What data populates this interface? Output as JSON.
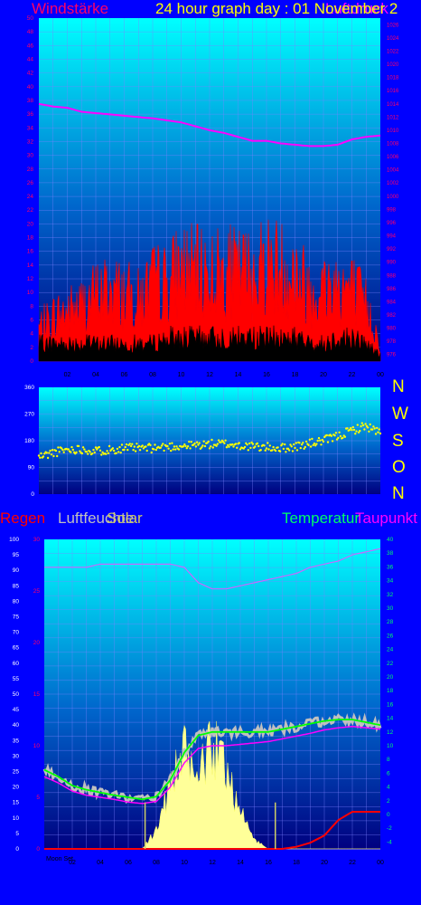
{
  "header": {
    "left_label": "Windstärke",
    "title": "24 hour graph day : 01 November 2",
    "pressure_label": "Luftdruck"
  },
  "colors": {
    "background": "#0000ff",
    "plot_top": "#00ffff",
    "plot_bottom": "#000080",
    "gust": "#ff0000",
    "wind": "#000000",
    "pressure": "#ff00ff",
    "direction": "#ffff00",
    "temperature": "#00ff00",
    "dewpoint": "#ff00ff",
    "humidity": "#c0c0c0",
    "rain": "#ff0000",
    "solar": "#ffff99",
    "axis_label_pink": "#ff0066"
  },
  "compass": [
    "N",
    "W",
    "S",
    "O",
    "N"
  ],
  "bottom_labels": {
    "rain": "Regen",
    "humidity": "Luftfeuchte",
    "solar": "Solar",
    "temperature": "Temperatur",
    "dewpoint": "Taupunkt",
    "moon": "Moon Set"
  },
  "chart_data": [
    {
      "type": "area",
      "name": "wind",
      "x_ticks": [
        "02",
        "04",
        "06",
        "08",
        "10",
        "12",
        "14",
        "16",
        "18",
        "20",
        "22",
        "00"
      ],
      "y_left_ticks": [
        0,
        2,
        4,
        6,
        8,
        10,
        12,
        14,
        16,
        18,
        20,
        22,
        24,
        26,
        28,
        30,
        32,
        34,
        36,
        38,
        40,
        42,
        44,
        46,
        48,
        50
      ],
      "y_right_ticks": [
        976,
        978,
        980,
        982,
        984,
        986,
        988,
        990,
        992,
        994,
        996,
        998,
        1000,
        1002,
        1004,
        1006,
        1008,
        1010,
        1012,
        1014,
        1016,
        1018,
        1020,
        1022,
        1024,
        1026
      ],
      "ylim_left": [
        0,
        50
      ],
      "ylim_right": [
        975,
        1027
      ],
      "x_hours": [
        0,
        1,
        2,
        3,
        4,
        5,
        6,
        7,
        8,
        9,
        10,
        11,
        12,
        13,
        14,
        15,
        16,
        17,
        18,
        19,
        20,
        21,
        22,
        23,
        24
      ],
      "series": [
        {
          "name": "gust",
          "values": [
            6,
            8,
            9,
            10,
            12,
            13,
            12,
            11,
            14,
            14,
            17,
            16,
            16,
            16,
            16,
            16,
            18,
            17,
            16,
            13,
            13,
            14,
            13,
            10,
            3
          ]
        },
        {
          "name": "wind",
          "values": [
            3,
            3,
            3,
            3,
            3,
            3,
            3,
            3,
            3,
            4,
            4,
            4,
            4,
            4,
            4,
            4,
            4,
            4,
            4,
            3,
            3,
            4,
            4,
            3,
            1
          ]
        },
        {
          "name": "pressure",
          "values": [
            1014,
            1013.6,
            1013.4,
            1012.8,
            1012.6,
            1012.4,
            1012.2,
            1012,
            1011.8,
            1011.5,
            1011.2,
            1010.6,
            1010,
            1009.6,
            1009,
            1008.4,
            1008.4,
            1008,
            1007.8,
            1007.6,
            1007.6,
            1007.8,
            1008.6,
            1009,
            1009.2
          ]
        }
      ]
    },
    {
      "type": "scatter",
      "name": "wind direction",
      "y_ticks": [
        0,
        90,
        180,
        270,
        360
      ],
      "ylim": [
        0,
        360
      ],
      "x_hours": [
        0,
        1,
        2,
        3,
        4,
        5,
        6,
        7,
        8,
        9,
        10,
        11,
        12,
        13,
        14,
        15,
        16,
        17,
        18,
        19,
        20,
        21,
        22,
        23,
        24
      ],
      "values": [
        125,
        140,
        150,
        152,
        145,
        150,
        155,
        155,
        155,
        160,
        162,
        165,
        168,
        170,
        165,
        160,
        158,
        155,
        160,
        170,
        180,
        195,
        215,
        230,
        205
      ]
    },
    {
      "type": "line",
      "name": "weather",
      "x_ticks": [
        "02",
        "04",
        "06",
        "08",
        "10",
        "12",
        "14",
        "16",
        "18",
        "20",
        "22",
        "00"
      ],
      "y_humidity_ticks": [
        0,
        5,
        10,
        15,
        20,
        25,
        30,
        35,
        40,
        45,
        50,
        55,
        60,
        65,
        70,
        75,
        80,
        85,
        90,
        95,
        100
      ],
      "y_rain_ticks": [
        0,
        5,
        10,
        15,
        20,
        25,
        30
      ],
      "y_temp_ticks": [
        -4,
        -2,
        0,
        2,
        4,
        6,
        8,
        10,
        12,
        14,
        16,
        18,
        20,
        22,
        24,
        26,
        28,
        30,
        32,
        34,
        36,
        38,
        40
      ],
      "ylim_temp": [
        -5,
        40
      ],
      "x_hours": [
        0,
        1,
        2,
        3,
        4,
        5,
        6,
        7,
        8,
        9,
        10,
        11,
        12,
        13,
        14,
        15,
        16,
        17,
        18,
        19,
        20,
        21,
        22,
        23,
        24
      ],
      "series": [
        {
          "name": "Temperatur",
          "values": [
            6.5,
            5.5,
            4.2,
            3.6,
            3.2,
            2.8,
            2.5,
            2.2,
            2.6,
            5,
            9,
            11.5,
            12,
            12,
            12,
            12,
            12,
            12.4,
            12.8,
            13.2,
            13.6,
            13.8,
            13.8,
            13.4,
            13
          ]
        },
        {
          "name": "Taupunkt",
          "values": [
            5.5,
            4.6,
            3.4,
            2.8,
            2.5,
            2.2,
            1.8,
            1.6,
            1.9,
            4,
            7.5,
            9.6,
            10,
            10,
            10.2,
            10.4,
            10.6,
            11,
            11.4,
            11.8,
            12.3,
            12.6,
            12.8,
            12.6,
            12.4
          ]
        },
        {
          "name": "Luftfeuchte",
          "values": [
            91,
            91,
            91,
            91,
            92,
            92,
            92,
            92,
            92,
            92,
            91,
            86,
            84,
            84,
            85,
            86,
            87,
            88,
            89,
            91,
            92,
            93,
            95,
            96,
            97
          ]
        },
        {
          "name": "Regen",
          "values": [
            0,
            0,
            0,
            0,
            0,
            0,
            0,
            0,
            0,
            0,
            0,
            0,
            0,
            0,
            0,
            0,
            0,
            0,
            0.2,
            0.6,
            1.3,
            2.8,
            3.6,
            3.6,
            3.6
          ]
        },
        {
          "name": "Solar",
          "values": [
            0,
            0,
            0,
            0,
            0,
            0,
            0,
            0,
            2,
            7,
            10,
            8,
            11,
            9,
            4,
            1,
            0,
            0,
            0,
            0,
            0,
            0,
            0,
            0,
            0
          ]
        }
      ]
    }
  ]
}
